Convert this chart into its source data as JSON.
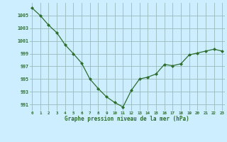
{
  "x": [
    0,
    1,
    2,
    3,
    4,
    5,
    6,
    7,
    8,
    9,
    10,
    11,
    12,
    13,
    14,
    15,
    16,
    17,
    18,
    19,
    20,
    21,
    22,
    23
  ],
  "y": [
    1006.2,
    1005.0,
    1003.5,
    1002.3,
    1000.4,
    999.0,
    997.5,
    995.0,
    993.5,
    992.2,
    991.3,
    990.6,
    993.2,
    995.0,
    995.3,
    995.8,
    997.3,
    997.1,
    997.4,
    998.8,
    999.1,
    999.4,
    999.7,
    999.4
  ],
  "line_color": "#2d6e2d",
  "marker_color": "#2d6e2d",
  "bg_color": "#cceeff",
  "grid_color": "#99bbbb",
  "xlabel": "Graphe pression niveau de la mer (hPa)",
  "xlabel_color": "#2d6e2d",
  "tick_color": "#2d6e2d",
  "ylim_min": 990.0,
  "ylim_max": 1007.0,
  "yticks": [
    991,
    993,
    995,
    997,
    999,
    1001,
    1003,
    1005
  ],
  "xticks": [
    0,
    1,
    2,
    3,
    4,
    5,
    6,
    7,
    8,
    9,
    10,
    11,
    12,
    13,
    14,
    15,
    16,
    17,
    18,
    19,
    20,
    21,
    22,
    23
  ],
  "figwidth": 3.2,
  "figheight": 2.0,
  "dpi": 100
}
